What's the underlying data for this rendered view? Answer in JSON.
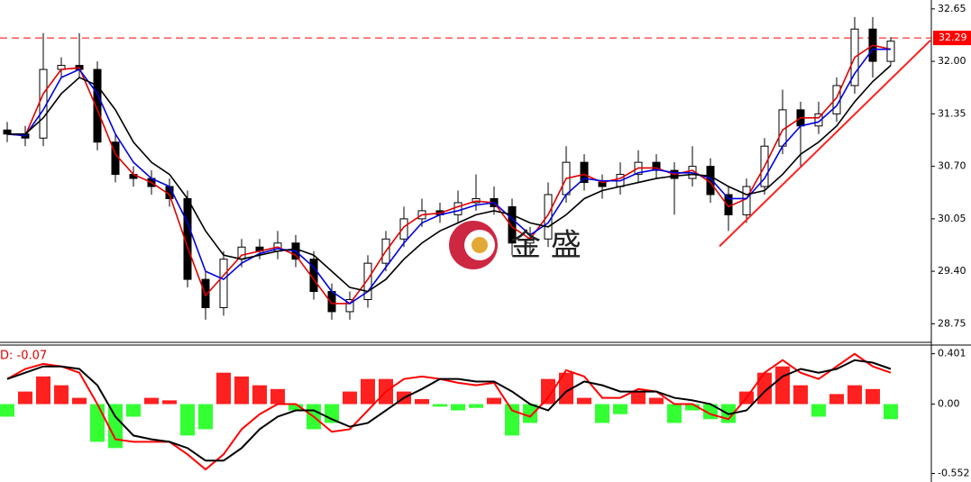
{
  "chart_data": [
    {
      "type": "candlestick",
      "ylim": [
        28.52,
        32.76
      ],
      "yticks": [
        32.65,
        {
          "value": 32,
          "label": "32.00"
        },
        31.35,
        {
          "value": 30.7,
          "label": "30.70"
        },
        30.05,
        {
          "value": 29.4,
          "label": "29.40"
        },
        28.75
      ],
      "candle_color": "#000000",
      "open": [
        31.15,
        31.1,
        31.05,
        31.9,
        31.95,
        31.9,
        31.0,
        30.6,
        30.55,
        30.45,
        30.3,
        29.3,
        28.95,
        29.55,
        29.7,
        29.65,
        29.75,
        29.55,
        29.15,
        28.9,
        29.05,
        29.5,
        29.8,
        30.05,
        30.15,
        30.1,
        30.25,
        30.3,
        30.2,
        29.75,
        29.8,
        30.35,
        30.75,
        30.5,
        30.45,
        30.6,
        30.75,
        30.65,
        30.55,
        30.7,
        30.35,
        30.1,
        30.45,
        30.95,
        31.4,
        31.2,
        31.35,
        31.7,
        32.4,
        32.0
      ],
      "high": [
        31.25,
        31.2,
        32.35,
        32.05,
        32.35,
        32.0,
        31.1,
        30.7,
        30.65,
        30.55,
        30.4,
        29.4,
        29.65,
        29.8,
        29.8,
        29.9,
        29.85,
        29.65,
        29.25,
        29.15,
        29.6,
        29.9,
        30.2,
        30.3,
        30.25,
        30.4,
        30.6,
        30.45,
        30.3,
        29.95,
        30.5,
        30.95,
        30.85,
        30.6,
        30.75,
        30.9,
        30.85,
        30.75,
        30.95,
        30.8,
        30.45,
        30.55,
        31.05,
        31.65,
        31.5,
        31.5,
        31.8,
        32.55,
        32.55,
        32.3
      ],
      "low": [
        31.0,
        30.95,
        30.95,
        31.8,
        31.8,
        30.9,
        30.5,
        30.45,
        30.35,
        30.2,
        29.2,
        28.8,
        28.85,
        29.45,
        29.55,
        29.55,
        29.45,
        29.05,
        28.8,
        28.8,
        28.95,
        29.4,
        29.7,
        29.95,
        30.0,
        30.0,
        30.15,
        30.1,
        29.6,
        29.6,
        29.7,
        30.25,
        30.4,
        30.3,
        30.35,
        30.5,
        30.55,
        30.1,
        30.45,
        30.25,
        29.9,
        30.0,
        30.35,
        30.85,
        30.7,
        31.1,
        31.25,
        31.6,
        31.8,
        31.95
      ],
      "close": [
        31.1,
        31.05,
        31.9,
        31.95,
        31.9,
        31.0,
        30.6,
        30.55,
        30.45,
        30.3,
        29.3,
        28.95,
        29.55,
        29.7,
        29.65,
        29.75,
        29.55,
        29.15,
        28.9,
        29.05,
        29.5,
        29.8,
        30.05,
        30.15,
        30.1,
        30.25,
        30.3,
        30.2,
        29.75,
        29.8,
        30.35,
        30.75,
        30.5,
        30.45,
        30.6,
        30.75,
        30.65,
        30.55,
        30.7,
        30.35,
        30.1,
        30.45,
        30.95,
        31.4,
        31.2,
        31.35,
        31.7,
        32.4,
        32.0,
        32.25
      ],
      "series": [
        {
          "color": "#e00000",
          "values": [
            31.1,
            31.08,
            31.6,
            31.9,
            31.92,
            31.4,
            30.85,
            30.6,
            30.5,
            30.35,
            29.7,
            29.1,
            29.35,
            29.6,
            29.65,
            29.7,
            29.6,
            29.3,
            29.0,
            29.0,
            29.3,
            29.65,
            29.95,
            30.1,
            30.12,
            30.2,
            30.27,
            30.25,
            29.95,
            29.8,
            30.1,
            30.55,
            30.6,
            30.5,
            30.55,
            30.68,
            30.68,
            30.6,
            30.65,
            30.5,
            30.2,
            30.3,
            30.7,
            31.15,
            31.3,
            31.3,
            31.55,
            32.05,
            32.2,
            32.15
          ]
        },
        {
          "color": "#0000e0",
          "values": [
            31.1,
            31.08,
            31.4,
            31.8,
            31.9,
            31.6,
            31.1,
            30.75,
            30.55,
            30.45,
            30.0,
            29.4,
            29.3,
            29.5,
            29.62,
            29.68,
            29.65,
            29.45,
            29.15,
            29.0,
            29.15,
            29.45,
            29.75,
            30.0,
            30.1,
            30.15,
            30.22,
            30.25,
            30.05,
            29.85,
            30.0,
            30.35,
            30.55,
            30.52,
            30.52,
            30.62,
            30.66,
            30.62,
            30.62,
            30.55,
            30.3,
            30.3,
            30.55,
            30.95,
            31.2,
            31.25,
            31.45,
            31.85,
            32.15,
            32.15
          ]
        },
        {
          "color": "#000000",
          "values": [
            31.1,
            31.1,
            31.3,
            31.6,
            31.8,
            31.7,
            31.4,
            31.0,
            30.75,
            30.6,
            30.3,
            29.9,
            29.6,
            29.55,
            29.6,
            29.65,
            29.68,
            29.6,
            29.4,
            29.2,
            29.15,
            29.3,
            29.55,
            29.75,
            29.9,
            30.0,
            30.1,
            30.15,
            30.1,
            30.0,
            29.95,
            30.1,
            30.3,
            30.4,
            30.45,
            30.5,
            30.55,
            30.58,
            30.6,
            30.58,
            30.45,
            30.35,
            30.4,
            30.6,
            30.85,
            31.0,
            31.2,
            31.5,
            31.75,
            31.95
          ]
        }
      ],
      "trendline": {
        "color": "#ff2020",
        "x": [
          39.5,
          51.2
        ],
        "y": [
          29.71,
          32.26
        ]
      },
      "current_price": {
        "value": 32.29,
        "label": "32.29",
        "color": "#ff0000"
      },
      "watermark": "金 盛"
    },
    {
      "type": "macd",
      "label": "D: -0.07",
      "ylim": [
        -0.62,
        0.47
      ],
      "yticks": [
        0.401,
        {
          "value": 0,
          "label": "0.00"
        },
        -0.552
      ],
      "positive_color": "#ff2020",
      "negative_color": "#33ff33",
      "histogram": [
        -0.1,
        0.1,
        0.22,
        0.15,
        0.05,
        -0.3,
        -0.35,
        -0.1,
        0.05,
        0.03,
        -0.25,
        -0.2,
        0.25,
        0.22,
        0.15,
        0.12,
        -0.05,
        -0.2,
        -0.15,
        0.1,
        0.2,
        0.2,
        0.1,
        0.04,
        -0.02,
        -0.05,
        -0.03,
        0.05,
        -0.25,
        -0.15,
        0.2,
        0.25,
        0.05,
        -0.15,
        -0.08,
        0.1,
        0.05,
        -0.15,
        -0.05,
        -0.12,
        -0.15,
        0.1,
        0.25,
        0.3,
        0.15,
        -0.1,
        0.08,
        0.15,
        0.12,
        -0.12
      ],
      "series": [
        {
          "color": "#ff0000",
          "values": [
            0.2,
            0.28,
            0.32,
            0.3,
            0.25,
            0.0,
            -0.28,
            -0.3,
            -0.3,
            -0.3,
            -0.4,
            -0.52,
            -0.4,
            -0.2,
            -0.08,
            0.0,
            0.0,
            -0.1,
            -0.22,
            -0.2,
            -0.05,
            0.1,
            0.2,
            0.22,
            0.2,
            0.17,
            0.15,
            0.17,
            -0.05,
            -0.1,
            0.05,
            0.27,
            0.22,
            0.05,
            0.05,
            0.12,
            0.1,
            0.0,
            0.0,
            -0.08,
            -0.12,
            0.05,
            0.25,
            0.35,
            0.25,
            0.2,
            0.3,
            0.4,
            0.3,
            0.25
          ]
        },
        {
          "color": "#000000",
          "values": [
            0.2,
            0.25,
            0.3,
            0.3,
            0.28,
            0.15,
            -0.1,
            -0.25,
            -0.28,
            -0.3,
            -0.35,
            -0.45,
            -0.45,
            -0.35,
            -0.2,
            -0.1,
            -0.05,
            -0.05,
            -0.12,
            -0.18,
            -0.15,
            -0.05,
            0.05,
            0.12,
            0.2,
            0.2,
            0.18,
            0.18,
            0.1,
            0.0,
            -0.05,
            0.1,
            0.18,
            0.15,
            0.1,
            0.1,
            0.1,
            0.05,
            0.03,
            0.0,
            -0.08,
            -0.05,
            0.1,
            0.22,
            0.28,
            0.25,
            0.28,
            0.35,
            0.33,
            0.28
          ]
        }
      ]
    }
  ]
}
